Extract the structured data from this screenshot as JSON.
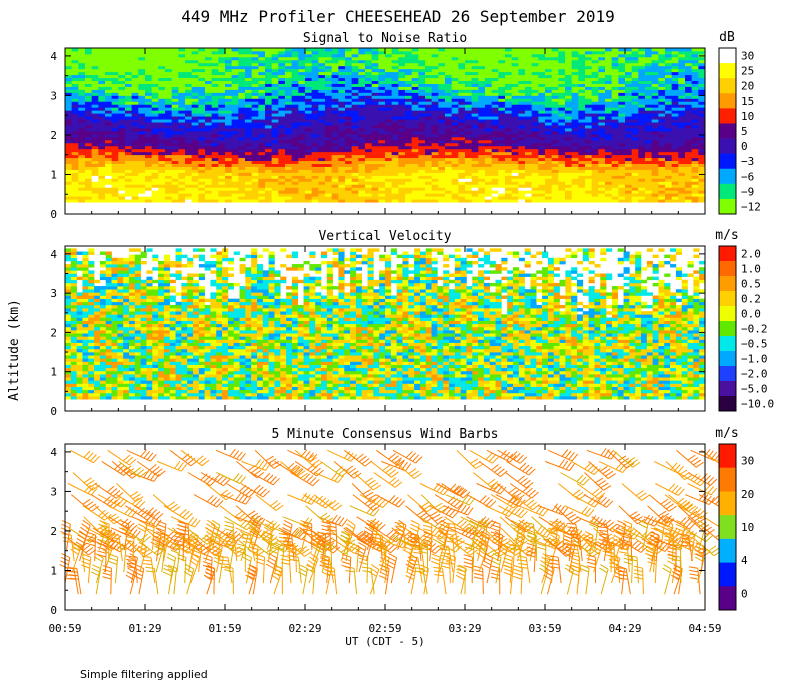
{
  "page": {
    "title": "449 MHz Profiler CHEESEHEAD 26 September 2019",
    "y_axis_label": "Altitude (km)",
    "x_axis_label": "UT  (CDT - 5)",
    "footnote": "Simple filtering applied"
  },
  "chart_data": [
    {
      "type": "heatmap",
      "title": "Signal to Noise Ratio",
      "unit": "dB",
      "ylim": [
        0,
        4.2
      ],
      "y_ticks": [
        "0",
        "1",
        "2",
        "3",
        "4"
      ],
      "x_ticks": [
        "00:59",
        "01:29",
        "01:59",
        "02:29",
        "02:59",
        "03:29",
        "03:59",
        "04:29",
        "04:59"
      ],
      "color_scale": {
        "labels": [
          "30",
          "25",
          "20",
          "15",
          "10",
          "5",
          "0",
          "−3",
          "−6",
          "−9",
          "−12"
        ],
        "colors": [
          "#ffffff",
          "#fffe00",
          "#ffd000",
          "#ff9a00",
          "#ff2000",
          "#5a0088",
          "#3a10b0",
          "#0018ff",
          "#00a8ff",
          "#00e87a",
          "#80ff00"
        ]
      },
      "profile_note": "approximate SNR vs altitude",
      "profile": [
        {
          "km": 0.3,
          "value": 25
        },
        {
          "km": 1.0,
          "value": 24
        },
        {
          "km": 1.4,
          "value": 14
        },
        {
          "km": 1.7,
          "value": 6
        },
        {
          "km": 2.2,
          "value": 2
        },
        {
          "km": 2.8,
          "value": -4
        },
        {
          "km": 3.3,
          "value": -8
        },
        {
          "km": 4.0,
          "value": -10
        }
      ]
    },
    {
      "type": "heatmap",
      "title": "Vertical Velocity",
      "unit": "m/s",
      "ylim": [
        0,
        4.2
      ],
      "y_ticks": [
        "0",
        "1",
        "2",
        "3",
        "4"
      ],
      "x_ticks": [
        "00:59",
        "01:29",
        "01:59",
        "02:29",
        "02:59",
        "03:29",
        "03:59",
        "04:29",
        "04:59"
      ],
      "color_scale": {
        "labels": [
          "2.0",
          "1.0",
          "0.5",
          "0.2",
          "0.0",
          "−0.2",
          "−0.5",
          "−1.0",
          "−2.0",
          "−5.0",
          "−10.0"
        ],
        "colors": [
          "#ff1a00",
          "#ff6a00",
          "#ff9c00",
          "#ffd000",
          "#f0ff00",
          "#60e800",
          "#00e8e8",
          "#00a8ff",
          "#2040ff",
          "#4a10a0",
          "#2a0040"
        ]
      },
      "value_range": [
        -0.6,
        0.6
      ]
    },
    {
      "type": "scatter",
      "title": "5 Minute Consensus Wind Barbs",
      "unit": "m/s",
      "ylim": [
        0,
        4.2
      ],
      "y_ticks": [
        "0",
        "1",
        "2",
        "3",
        "4"
      ],
      "x_ticks": [
        "00:59",
        "01:29",
        "01:59",
        "02:29",
        "02:59",
        "03:29",
        "03:59",
        "04:29",
        "04:59"
      ],
      "color_scale": {
        "labels": [
          "30",
          "20",
          "10",
          "4",
          "0"
        ],
        "colors": [
          "#ff1a00",
          "#ff7a00",
          "#ffb000",
          "#80e020",
          "#00b0ff",
          "#0018ff",
          "#5a0088"
        ]
      },
      "speed_range_ms": [
        10,
        25
      ]
    }
  ]
}
